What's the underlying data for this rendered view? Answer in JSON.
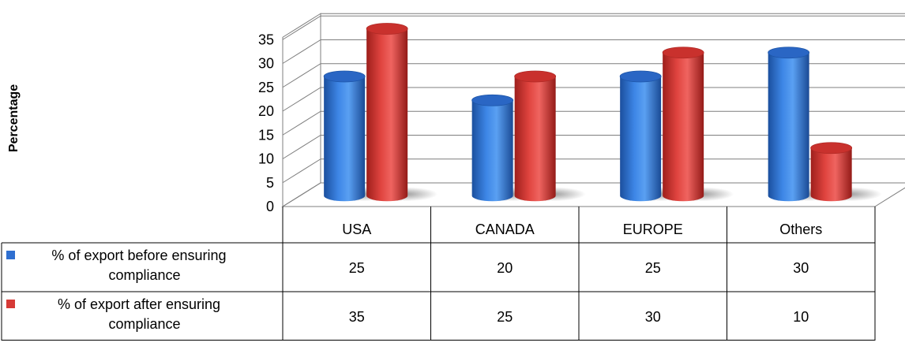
{
  "chart_data": {
    "type": "bar",
    "ylabel": "Percentage",
    "ylim": [
      0,
      35
    ],
    "yticks": [
      "0",
      "5",
      "10",
      "15",
      "20",
      "25",
      "30",
      "35"
    ],
    "categories": [
      "USA",
      "CANADA",
      "EUROPE",
      "Others"
    ],
    "series": [
      {
        "name": "% of export before ensuring compliance",
        "legend_lines": [
          "% of export before ensuring",
          "compliance"
        ],
        "color": "#2f6fd0",
        "values": [
          25,
          20,
          25,
          30
        ]
      },
      {
        "name": "% of export after ensuring compliance",
        "legend_lines": [
          "% of export after ensuring",
          "compliance"
        ],
        "color": "#d63a36",
        "values": [
          35,
          25,
          30,
          10
        ]
      }
    ],
    "data_table": true,
    "legend": "data-table",
    "style": "3d-cylinder"
  }
}
